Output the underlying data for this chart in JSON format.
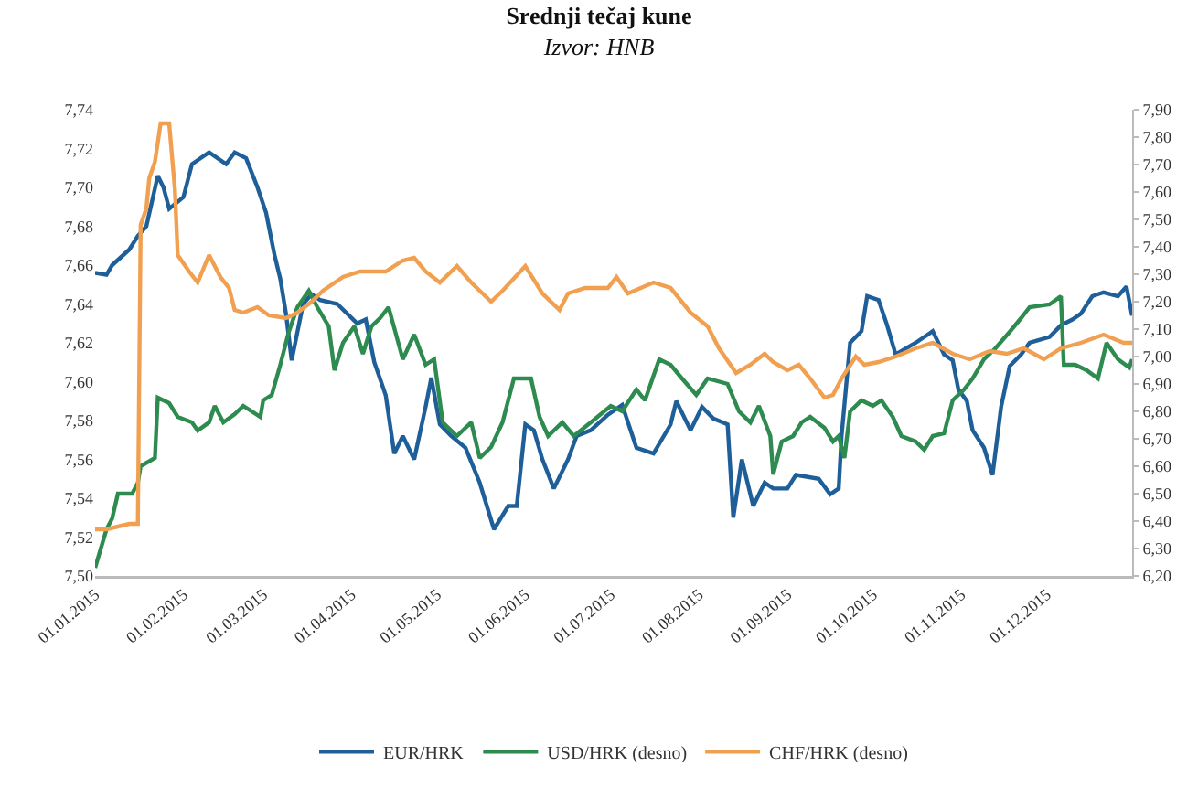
{
  "chart_data": {
    "type": "line",
    "title": "Srednji tečaj kune",
    "subtitle": "Izvor: HNB",
    "xlim": [
      "2015-01-01",
      "2015-12-31"
    ],
    "xticks": [
      {
        "value": "2015-01-01",
        "label": "01.01.2015"
      },
      {
        "value": "2015-02-01",
        "label": "01.02.2015"
      },
      {
        "value": "2015-03-01",
        "label": "01.03.2015"
      },
      {
        "value": "2015-04-01",
        "label": "01.04.2015"
      },
      {
        "value": "2015-05-01",
        "label": "01.05.2015"
      },
      {
        "value": "2015-06-01",
        "label": "01.06.2015"
      },
      {
        "value": "2015-07-01",
        "label": "01.07.2015"
      },
      {
        "value": "2015-08-01",
        "label": "01.08.2015"
      },
      {
        "value": "2015-09-01",
        "label": "01.09.2015"
      },
      {
        "value": "2015-10-01",
        "label": "01.10.2015"
      },
      {
        "value": "2015-11-01",
        "label": "01.11.2015"
      },
      {
        "value": "2015-12-01",
        "label": "01.12.2015"
      }
    ],
    "ylim": [
      7.5,
      7.74
    ],
    "yticks": [
      {
        "value": 7.5,
        "label": "7,50"
      },
      {
        "value": 7.52,
        "label": "7,52"
      },
      {
        "value": 7.54,
        "label": "7,54"
      },
      {
        "value": 7.56,
        "label": "7,56"
      },
      {
        "value": 7.58,
        "label": "7,58"
      },
      {
        "value": 7.6,
        "label": "7,60"
      },
      {
        "value": 7.62,
        "label": "7,62"
      },
      {
        "value": 7.64,
        "label": "7,64"
      },
      {
        "value": 7.66,
        "label": "7,66"
      },
      {
        "value": 7.68,
        "label": "7,68"
      },
      {
        "value": 7.7,
        "label": "7,70"
      },
      {
        "value": 7.72,
        "label": "7,72"
      },
      {
        "value": 7.74,
        "label": "7,74"
      }
    ],
    "y2lim": [
      6.2,
      7.9
    ],
    "y2ticks": [
      {
        "value": 6.2,
        "label": "6,20"
      },
      {
        "value": 6.3,
        "label": "6,30"
      },
      {
        "value": 6.4,
        "label": "6,40"
      },
      {
        "value": 6.5,
        "label": "6,50"
      },
      {
        "value": 6.6,
        "label": "6,60"
      },
      {
        "value": 6.7,
        "label": "6,70"
      },
      {
        "value": 6.8,
        "label": "6,80"
      },
      {
        "value": 6.9,
        "label": "6,90"
      },
      {
        "value": 7.0,
        "label": "7,00"
      },
      {
        "value": 7.1,
        "label": "7,10"
      },
      {
        "value": 7.2,
        "label": "7,20"
      },
      {
        "value": 7.3,
        "label": "7,30"
      },
      {
        "value": 7.4,
        "label": "7,40"
      },
      {
        "value": 7.5,
        "label": "7,50"
      },
      {
        "value": 7.6,
        "label": "7,60"
      },
      {
        "value": 7.7,
        "label": "7,70"
      },
      {
        "value": 7.8,
        "label": "7,80"
      },
      {
        "value": 7.9,
        "label": "7,90"
      }
    ],
    "grid": false,
    "legend": "bottom",
    "marker": "none",
    "line_style": "solid",
    "series": [
      {
        "name": "EUR/HRK",
        "color": "#1f5f99",
        "x": [
          "2015-01-01",
          "2015-01-05",
          "2015-01-07",
          "2015-01-13",
          "2015-01-16",
          "2015-01-19",
          "2015-01-23",
          "2015-01-25",
          "2015-01-27",
          "2015-02-01",
          "2015-02-04",
          "2015-02-10",
          "2015-02-16",
          "2015-02-19",
          "2015-02-23",
          "2015-02-27",
          "2015-03-02",
          "2015-03-05",
          "2015-03-07",
          "2015-03-09",
          "2015-03-11",
          "2015-03-15",
          "2015-03-18",
          "2015-03-21",
          "2015-03-27",
          "2015-04-03",
          "2015-04-06",
          "2015-04-09",
          "2015-04-13",
          "2015-04-16",
          "2015-04-19",
          "2015-04-23",
          "2015-04-27",
          "2015-04-29",
          "2015-05-02",
          "2015-05-06",
          "2015-05-11",
          "2015-05-16",
          "2015-05-21",
          "2015-05-26",
          "2015-05-29",
          "2015-06-01",
          "2015-06-04",
          "2015-06-07",
          "2015-06-11",
          "2015-06-16",
          "2015-06-19",
          "2015-06-24",
          "2015-06-30",
          "2015-07-05",
          "2015-07-10",
          "2015-07-16",
          "2015-07-22",
          "2015-07-24",
          "2015-07-29",
          "2015-08-02",
          "2015-08-06",
          "2015-08-11",
          "2015-08-13",
          "2015-08-16",
          "2015-08-20",
          "2015-08-24",
          "2015-08-27",
          "2015-09-01",
          "2015-09-04",
          "2015-09-12",
          "2015-09-16",
          "2015-09-19",
          "2015-09-20",
          "2015-09-23",
          "2015-09-27",
          "2015-09-29",
          "2015-10-03",
          "2015-10-06",
          "2015-10-09",
          "2015-10-16",
          "2015-10-22",
          "2015-10-26",
          "2015-10-29",
          "2015-10-31",
          "2015-11-03",
          "2015-11-05",
          "2015-11-09",
          "2015-11-12",
          "2015-11-15",
          "2015-11-18",
          "2015-11-22",
          "2015-11-25",
          "2015-12-02",
          "2015-12-06",
          "2015-12-10",
          "2015-12-13",
          "2015-12-17",
          "2015-12-21",
          "2015-12-26",
          "2015-12-29",
          "2015-12-31"
        ],
        "values": [
          7.656,
          7.655,
          7.66,
          7.668,
          7.675,
          7.68,
          7.706,
          7.7,
          7.689,
          7.695,
          7.712,
          7.718,
          7.712,
          7.718,
          7.715,
          7.7,
          7.687,
          7.665,
          7.653,
          7.635,
          7.611,
          7.64,
          7.645,
          7.642,
          7.64,
          7.63,
          7.632,
          7.61,
          7.593,
          7.563,
          7.572,
          7.56,
          7.587,
          7.602,
          7.578,
          7.572,
          7.566,
          7.548,
          7.524,
          7.536,
          7.536,
          7.578,
          7.575,
          7.56,
          7.545,
          7.56,
          7.572,
          7.575,
          7.583,
          7.588,
          7.566,
          7.563,
          7.578,
          7.59,
          7.575,
          7.587,
          7.581,
          7.578,
          7.53,
          7.56,
          7.536,
          7.548,
          7.545,
          7.545,
          7.552,
          7.55,
          7.542,
          7.545,
          7.572,
          7.62,
          7.626,
          7.644,
          7.642,
          7.629,
          7.614,
          7.62,
          7.626,
          7.614,
          7.611,
          7.596,
          7.59,
          7.575,
          7.566,
          7.552,
          7.587,
          7.608,
          7.614,
          7.62,
          7.623,
          7.629,
          7.632,
          7.635,
          7.644,
          7.646,
          7.644,
          7.649,
          7.634
        ]
      },
      {
        "name": "USD/HRK (desno)",
        "color": "#2e8b4f",
        "axis": "y2",
        "x": [
          "2015-01-01",
          "2015-01-05",
          "2015-01-07",
          "2015-01-09",
          "2015-01-14",
          "2015-01-16",
          "2015-01-17",
          "2015-01-22",
          "2015-01-23",
          "2015-01-27",
          "2015-01-30",
          "2015-02-04",
          "2015-02-06",
          "2015-02-10",
          "2015-02-12",
          "2015-02-15",
          "2015-02-19",
          "2015-02-22",
          "2015-02-28",
          "2015-03-01",
          "2015-03-04",
          "2015-03-07",
          "2015-03-10",
          "2015-03-13",
          "2015-03-17",
          "2015-03-20",
          "2015-03-24",
          "2015-03-26",
          "2015-03-29",
          "2015-04-02",
          "2015-04-05",
          "2015-04-08",
          "2015-04-11",
          "2015-04-14",
          "2015-04-19",
          "2015-04-23",
          "2015-04-27",
          "2015-04-30",
          "2015-05-03",
          "2015-05-08",
          "2015-05-13",
          "2015-05-16",
          "2015-05-20",
          "2015-05-24",
          "2015-05-28",
          "2015-06-03",
          "2015-06-06",
          "2015-06-09",
          "2015-06-14",
          "2015-06-18",
          "2015-06-24",
          "2015-07-01",
          "2015-07-05",
          "2015-07-10",
          "2015-07-13",
          "2015-07-18",
          "2015-07-22",
          "2015-07-26",
          "2015-07-31",
          "2015-08-04",
          "2015-08-11",
          "2015-08-15",
          "2015-08-19",
          "2015-08-22",
          "2015-08-26",
          "2015-08-27",
          "2015-08-30",
          "2015-09-03",
          "2015-09-06",
          "2015-09-09",
          "2015-09-14",
          "2015-09-17",
          "2015-09-19",
          "2015-09-21",
          "2015-09-23",
          "2015-09-27",
          "2015-10-01",
          "2015-10-04",
          "2015-10-08",
          "2015-10-11",
          "2015-10-16",
          "2015-10-19",
          "2015-10-22",
          "2015-10-26",
          "2015-10-29",
          "2015-11-02",
          "2015-11-05",
          "2015-11-09",
          "2015-11-13",
          "2015-11-18",
          "2015-11-22",
          "2015-11-25",
          "2015-12-02",
          "2015-12-06",
          "2015-12-07",
          "2015-12-11",
          "2015-12-15",
          "2015-12-19",
          "2015-12-22",
          "2015-12-26",
          "2015-12-30",
          "2015-12-31"
        ],
        "values": [
          6.23,
          6.37,
          6.41,
          6.5,
          6.5,
          6.54,
          6.6,
          6.63,
          6.85,
          6.83,
          6.78,
          6.76,
          6.73,
          6.76,
          6.82,
          6.76,
          6.79,
          6.82,
          6.78,
          6.84,
          6.86,
          6.97,
          7.09,
          7.18,
          7.24,
          7.18,
          7.11,
          6.95,
          7.05,
          7.11,
          7.01,
          7.11,
          7.14,
          7.18,
          6.99,
          7.08,
          6.97,
          6.99,
          6.76,
          6.71,
          6.76,
          6.63,
          6.67,
          6.76,
          6.92,
          6.92,
          6.78,
          6.71,
          6.76,
          6.71,
          6.76,
          6.82,
          6.8,
          6.88,
          6.84,
          6.99,
          6.97,
          6.92,
          6.86,
          6.92,
          6.9,
          6.8,
          6.76,
          6.82,
          6.71,
          6.57,
          6.69,
          6.71,
          6.76,
          6.78,
          6.74,
          6.69,
          6.71,
          6.63,
          6.8,
          6.84,
          6.82,
          6.84,
          6.78,
          6.71,
          6.69,
          6.66,
          6.71,
          6.72,
          6.84,
          6.88,
          6.92,
          6.99,
          7.03,
          7.09,
          7.14,
          7.18,
          7.19,
          7.22,
          6.97,
          6.97,
          6.95,
          6.92,
          7.05,
          6.99,
          6.96,
          6.99
        ]
      },
      {
        "name": "CHF/HRK (desno)",
        "color": "#f0a050",
        "axis": "y2",
        "x": [
          "2015-01-01",
          "2015-01-05",
          "2015-01-13",
          "2015-01-16",
          "2015-01-17",
          "2015-01-19",
          "2015-01-20",
          "2015-01-22",
          "2015-01-24",
          "2015-01-27",
          "2015-01-29",
          "2015-01-30",
          "2015-02-03",
          "2015-02-06",
          "2015-02-10",
          "2015-02-14",
          "2015-02-17",
          "2015-02-19",
          "2015-02-22",
          "2015-02-27",
          "2015-03-03",
          "2015-03-09",
          "2015-03-13",
          "2015-03-18",
          "2015-03-22",
          "2015-03-29",
          "2015-04-04",
          "2015-04-13",
          "2015-04-19",
          "2015-04-23",
          "2015-04-27",
          "2015-05-02",
          "2015-05-08",
          "2015-05-13",
          "2015-05-20",
          "2015-05-24",
          "2015-06-01",
          "2015-06-07",
          "2015-06-13",
          "2015-06-16",
          "2015-06-22",
          "2015-06-30",
          "2015-07-03",
          "2015-07-07",
          "2015-07-16",
          "2015-07-22",
          "2015-07-29",
          "2015-08-04",
          "2015-08-08",
          "2015-08-14",
          "2015-08-19",
          "2015-08-24",
          "2015-08-27",
          "2015-09-01",
          "2015-09-05",
          "2015-09-09",
          "2015-09-14",
          "2015-09-17",
          "2015-09-20",
          "2015-09-25",
          "2015-09-28",
          "2015-10-03",
          "2015-10-09",
          "2015-10-16",
          "2015-10-22",
          "2015-10-29",
          "2015-11-04",
          "2015-11-11",
          "2015-11-17",
          "2015-11-23",
          "2015-11-30",
          "2015-12-06",
          "2015-12-13",
          "2015-12-21",
          "2015-12-28",
          "2015-12-31"
        ],
        "values": [
          6.37,
          6.37,
          6.39,
          6.39,
          7.48,
          7.54,
          7.65,
          7.71,
          7.85,
          7.85,
          7.61,
          7.37,
          7.31,
          7.27,
          7.37,
          7.29,
          7.25,
          7.17,
          7.16,
          7.18,
          7.15,
          7.14,
          7.16,
          7.2,
          7.24,
          7.29,
          7.31,
          7.31,
          7.35,
          7.36,
          7.31,
          7.27,
          7.33,
          7.27,
          7.2,
          7.24,
          7.33,
          7.23,
          7.17,
          7.23,
          7.25,
          7.25,
          7.29,
          7.23,
          7.27,
          7.25,
          7.16,
          7.11,
          7.03,
          6.94,
          6.97,
          7.01,
          6.98,
          6.95,
          6.97,
          6.92,
          6.85,
          6.86,
          6.92,
          7.0,
          6.97,
          6.98,
          7.0,
          7.03,
          7.05,
          7.01,
          6.99,
          7.02,
          7.01,
          7.03,
          6.99,
          7.03,
          7.05,
          7.08,
          7.05,
          7.05
        ]
      }
    ]
  }
}
